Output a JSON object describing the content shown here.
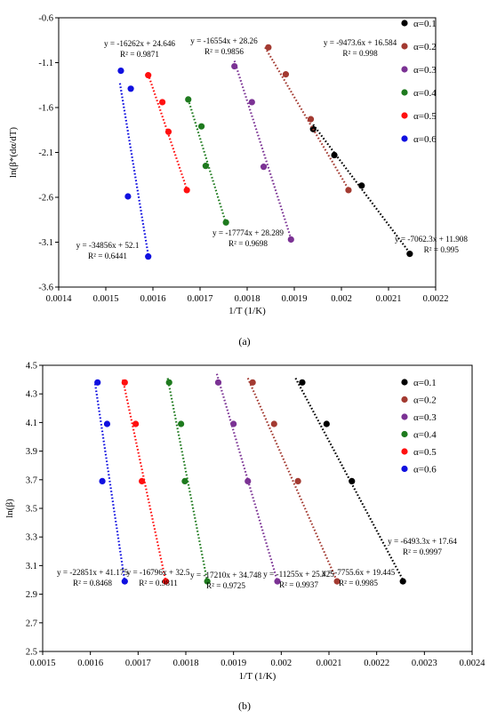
{
  "chart_data": [
    {
      "type": "scatter",
      "panel_label": "(a)",
      "xlabel": "1/T (1/K)",
      "ylabel": "ln(β*(dα/dT)",
      "xlim": [
        0.0014,
        0.0022
      ],
      "ylim": [
        -3.6,
        -0.6
      ],
      "xticks": [
        "0.0014",
        "0.0015",
        "0.0016",
        "0.0017",
        "0.0018",
        "0.0019",
        "0.002",
        "0.0021",
        "0.0022"
      ],
      "yticks": [
        "-0.6",
        "-1.1",
        "-1.6",
        "-2.1",
        "-2.6",
        "-3.1",
        "-3.6"
      ],
      "grid": false,
      "legend_position": "top-right",
      "trendline_style": "dotted",
      "series": [
        {
          "name": "α=0.1",
          "color": "#000000",
          "points": [
            [
              0.00194,
              -1.84
            ],
            [
              0.001985,
              -2.13
            ],
            [
              0.002043,
              -2.47
            ],
            [
              0.002145,
              -3.23
            ]
          ],
          "fit": [
            [
              0.00194,
              -1.79
            ],
            [
              0.002145,
              -3.22
            ]
          ],
          "equation": "y = -7062.3x + 11.908",
          "r2": "R² = 0.995"
        },
        {
          "name": "α=0.2",
          "color": "#A33A31",
          "points": [
            [
              0.001845,
              -0.93
            ],
            [
              0.001882,
              -1.23
            ],
            [
              0.001935,
              -1.73
            ],
            [
              0.002015,
              -2.52
            ]
          ],
          "fit": [
            [
              0.001838,
              -0.93
            ],
            [
              0.002015,
              -2.51
            ]
          ],
          "equation": "y = -9473.6x + 16.584",
          "r2": "R² = 0.998"
        },
        {
          "name": "α=0.3",
          "color": "#7B3294",
          "points": [
            [
              0.001773,
              -1.14
            ],
            [
              0.00181,
              -1.54
            ],
            [
              0.001835,
              -2.26
            ],
            [
              0.001893,
              -3.07
            ]
          ],
          "fit": [
            [
              0.001773,
              -1.08
            ],
            [
              0.001893,
              -3.06
            ]
          ],
          "equation": "y = -16554x + 28.26",
          "r2": "R² = 0.9856"
        },
        {
          "name": "α=0.4",
          "color": "#1E7A1E",
          "points": [
            [
              0.001675,
              -1.51
            ],
            [
              0.001703,
              -1.81
            ],
            [
              0.001712,
              -2.25
            ],
            [
              0.001755,
              -2.88
            ]
          ],
          "fit": [
            [
              0.001675,
              -1.51
            ],
            [
              0.001755,
              -2.89
            ]
          ],
          "equation": "y = -17774x + 28.289",
          "r2": "R² = 0.9698"
        },
        {
          "name": "α=0.5",
          "color": "#FF1010",
          "points": [
            [
              0.00159,
              -1.24
            ],
            [
              0.00162,
              -1.54
            ],
            [
              0.001633,
              -1.87
            ],
            [
              0.001672,
              -2.52
            ]
          ],
          "fit": [
            [
              0.00159,
              -1.23
            ],
            [
              0.001672,
              -2.51
            ]
          ],
          "equation": "y = -16262x + 24.646",
          "r2": "R² = 0.9871"
        },
        {
          "name": "α=0.6",
          "color": "#1010E0",
          "points": [
            [
              0.001532,
              -1.19
            ],
            [
              0.001553,
              -1.39
            ],
            [
              0.001547,
              -2.59
            ],
            [
              0.00159,
              -3.26
            ]
          ],
          "fit": [
            [
              0.00153,
              -1.33
            ],
            [
              0.00159,
              -3.24
            ]
          ],
          "equation": "y = -34856x + 52.1",
          "r2": "R² = 0.6441"
        }
      ]
    },
    {
      "type": "scatter",
      "panel_label": "(b)",
      "xlabel": "1/T (1/K)",
      "ylabel": "ln(β)",
      "xlim": [
        0.0015,
        0.0024
      ],
      "ylim": [
        2.5,
        4.5
      ],
      "xticks": [
        "0.0015",
        "0.0016",
        "0.0017",
        "0.0018",
        "0.0019",
        "0.002",
        "0.0021",
        "0.0022",
        "0.0023",
        "0.0024"
      ],
      "yticks": [
        "2.5",
        "2.7",
        "2.9",
        "3.1",
        "3.3",
        "3.5",
        "3.7",
        "3.9",
        "4.1",
        "4.3",
        "4.5"
      ],
      "grid": false,
      "legend_position": "top-right",
      "trendline_style": "dotted",
      "series": [
        {
          "name": "α=0.1",
          "color": "#000000",
          "points": [
            [
              0.002044,
              4.38
            ],
            [
              0.002095,
              4.09
            ],
            [
              0.002148,
              3.69
            ],
            [
              0.002255,
              2.99
            ]
          ],
          "fit": [
            [
              0.00203,
              4.41
            ],
            [
              0.002255,
              3.0
            ]
          ],
          "equation": "y = -6493.3x + 17.64",
          "r2": "R² = 0.9997"
        },
        {
          "name": "α=0.2",
          "color": "#A33A31",
          "points": [
            [
              0.00194,
              4.38
            ],
            [
              0.001985,
              4.09
            ],
            [
              0.002035,
              3.69
            ],
            [
              0.002117,
              2.99
            ]
          ],
          "fit": [
            [
              0.00193,
              4.41
            ],
            [
              0.002117,
              2.99
            ]
          ],
          "equation": "y = -7755.6x + 19.445",
          "r2": "R² = 0.9985"
        },
        {
          "name": "α=0.3",
          "color": "#7B3294",
          "points": [
            [
              0.001868,
              4.38
            ],
            [
              0.0019,
              4.09
            ],
            [
              0.00193,
              3.69
            ],
            [
              0.001992,
              2.99
            ]
          ],
          "fit": [
            [
              0.001865,
              4.44
            ],
            [
              0.001992,
              2.99
            ]
          ],
          "equation": "y = -11255x + 25.425",
          "r2": "R² = 0.9937"
        },
        {
          "name": "α=0.4",
          "color": "#1E7A1E",
          "points": [
            [
              0.001765,
              4.38
            ],
            [
              0.00179,
              4.09
            ],
            [
              0.001798,
              3.69
            ],
            [
              0.001845,
              2.99
            ]
          ],
          "fit": [
            [
              0.001762,
              4.41
            ],
            [
              0.001845,
              2.99
            ]
          ],
          "equation": "y = -17210x + 34.748",
          "r2": "R² = 0.9725"
        },
        {
          "name": "α=0.5",
          "color": "#FF1010",
          "points": [
            [
              0.001672,
              4.38
            ],
            [
              0.001695,
              4.09
            ],
            [
              0.001708,
              3.69
            ],
            [
              0.001758,
              2.99
            ]
          ],
          "fit": [
            [
              0.001668,
              4.4
            ],
            [
              0.001758,
              2.99
            ]
          ],
          "equation": "y = -16796x + 32.5",
          "r2": "R² = 0.9811"
        },
        {
          "name": "α=0.6",
          "color": "#1010E0",
          "points": [
            [
              0.001615,
              4.38
            ],
            [
              0.001635,
              4.09
            ],
            [
              0.001625,
              3.69
            ],
            [
              0.001672,
              2.99
            ]
          ],
          "fit": [
            [
              0.00161,
              4.37
            ],
            [
              0.001672,
              2.99
            ]
          ],
          "equation": "y = -22851x + 41.175",
          "r2": "R² = 0.8468"
        }
      ]
    }
  ]
}
